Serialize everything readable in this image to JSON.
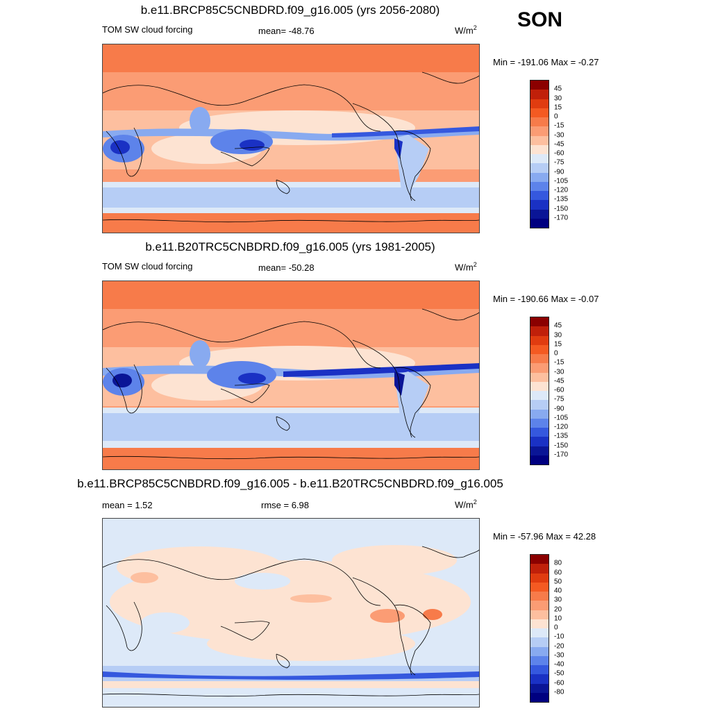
{
  "season": "SON",
  "units": {
    "base": "W/m",
    "exp": "2"
  },
  "panels": [
    {
      "title": "b.e11.BRCP85C5CNBDRD.f09_g16.005 (yrs 2056-2080)",
      "left_label": "TOM SW cloud forcing",
      "center_label": "mean= -48.76",
      "minmax": "Min = -191.06 Max =  -0.27",
      "colorbar_labels": [
        "45",
        "30",
        "15",
        "0",
        "-15",
        "-30",
        "-45",
        "-60",
        "-75",
        "-90",
        "-105",
        "-120",
        "-135",
        "-150",
        "-170"
      ]
    },
    {
      "title": "b.e11.B20TRC5CNBDRD.f09_g16.005 (yrs 1981-2005)",
      "left_label": "TOM SW cloud forcing",
      "center_label": "mean= -50.28",
      "minmax": "Min = -190.66 Max =  -0.07",
      "colorbar_labels": [
        "45",
        "30",
        "15",
        "0",
        "-15",
        "-30",
        "-45",
        "-60",
        "-75",
        "-90",
        "-105",
        "-120",
        "-135",
        "-150",
        "-170"
      ]
    },
    {
      "title": "b.e11.BRCP85C5CNBDRD.f09_g16.005 - b.e11.B20TRC5CNBDRD.f09_g16.005",
      "left_label": "mean =   1.52",
      "center_label": "rmse =   6.98",
      "minmax": "Min = -57.96 Max =  42.28",
      "colorbar_labels": [
        "80",
        "60",
        "50",
        "40",
        "30",
        "20",
        "10",
        "0",
        "-10",
        "-20",
        "-30",
        "-40",
        "-50",
        "-60",
        "-80"
      ]
    }
  ],
  "colors": {
    "palette": [
      "#8b0000",
      "#c0200a",
      "#e03c10",
      "#f45a22",
      "#f77b4a",
      "#fb9c74",
      "#fdbf9f",
      "#fde3d2",
      "#dde9f8",
      "#b6cdf5",
      "#88aaf0",
      "#5d83ea",
      "#3558de",
      "#1a31c4",
      "#0a1596",
      "#000080"
    ]
  }
}
